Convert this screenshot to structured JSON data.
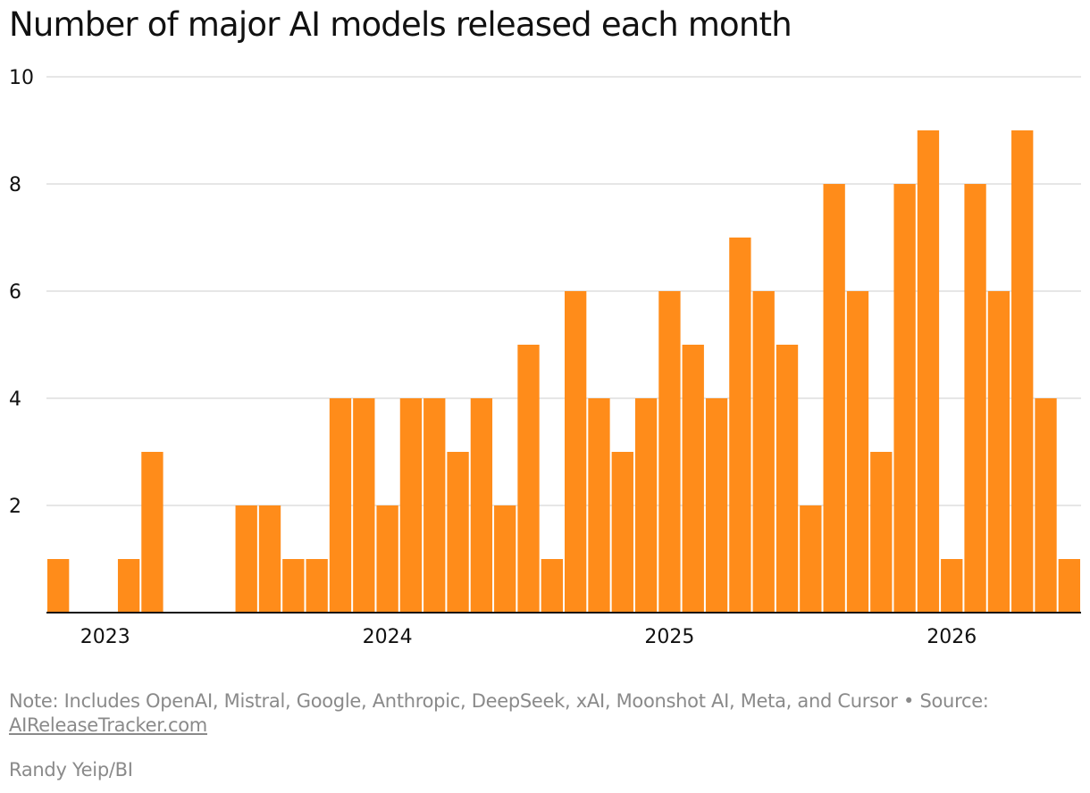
{
  "title": "Number of major AI models released each month",
  "note": {
    "text": "Note: Includes OpenAI, Mistral, Google, Anthropic, DeepSeek, xAI, Moonshot AI, Meta, and Cursor • Source:",
    "source_link": "AIReleaseTracker.com"
  },
  "credit": "Randy Yeip/BI",
  "colors": {
    "bar": "#FF8C1A",
    "grid": "#dddddd",
    "baseline": "#111111",
    "text": "#111111",
    "muted": "#8a8a8a"
  },
  "chart_data": {
    "type": "bar",
    "title": "Number of major AI models released each month",
    "xlabel": "",
    "ylabel": "",
    "ylim": [
      0,
      10
    ],
    "yticks": [
      2,
      4,
      6,
      8,
      10
    ],
    "grid": true,
    "x_tick_labels": [
      {
        "label": "2023",
        "at": "2023-01"
      },
      {
        "label": "2024",
        "at": "2024-01"
      },
      {
        "label": "2025",
        "at": "2025-01"
      },
      {
        "label": "2026",
        "at": "2026-01"
      }
    ],
    "categories": [
      "2022-11",
      "2022-12",
      "2023-01",
      "2023-02",
      "2023-03",
      "2023-04",
      "2023-05",
      "2023-06",
      "2023-07",
      "2023-08",
      "2023-09",
      "2023-10",
      "2023-11",
      "2023-12",
      "2024-01",
      "2024-02",
      "2024-03",
      "2024-04",
      "2024-05",
      "2024-06",
      "2024-07",
      "2024-08",
      "2024-09",
      "2024-10",
      "2024-11",
      "2024-12",
      "2025-01",
      "2025-02",
      "2025-03",
      "2025-04",
      "2025-05",
      "2025-06",
      "2025-07",
      "2025-08",
      "2025-09",
      "2025-10",
      "2025-11",
      "2025-12",
      "2026-01",
      "2026-02",
      "2026-03",
      "2026-04",
      "2026-05",
      "2026-06"
    ],
    "values": [
      1,
      0,
      0,
      1,
      3,
      0,
      0,
      0,
      2,
      2,
      1,
      1,
      4,
      4,
      2,
      4,
      4,
      3,
      4,
      2,
      5,
      1,
      6,
      4,
      3,
      4,
      6,
      5,
      4,
      7,
      6,
      5,
      2,
      8,
      6,
      3,
      8,
      9,
      1,
      8,
      6,
      9,
      4,
      1
    ]
  }
}
